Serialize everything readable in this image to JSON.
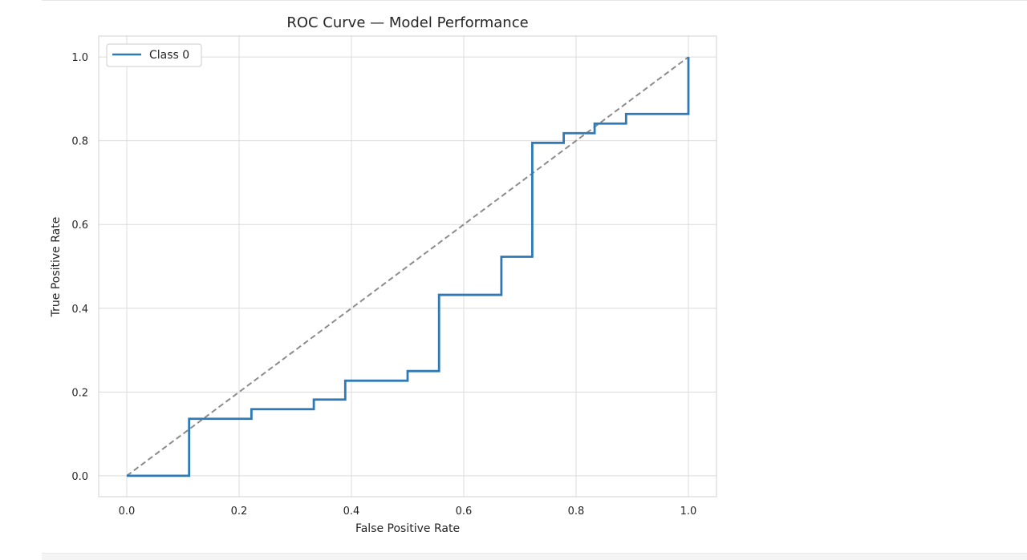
{
  "chart_data": {
    "type": "line",
    "title": "ROC Curve — Model Performance",
    "xlabel": "False Positive Rate",
    "ylabel": "True Positive Rate",
    "xlim": [
      -0.05,
      1.05
    ],
    "ylim": [
      -0.05,
      1.05
    ],
    "xticks": [
      0.0,
      0.2,
      0.4,
      0.6,
      0.8,
      1.0
    ],
    "yticks": [
      0.0,
      0.2,
      0.4,
      0.6,
      0.8,
      1.0
    ],
    "xtick_labels": [
      "0.0",
      "0.2",
      "0.4",
      "0.6",
      "0.8",
      "1.0"
    ],
    "ytick_labels": [
      "0.0",
      "0.2",
      "0.4",
      "0.6",
      "0.8",
      "1.0"
    ],
    "grid": true,
    "legend_position": "upper-left",
    "series": [
      {
        "name": "Class 0",
        "style": "step",
        "color": "#2e7ab6",
        "x": [
          0.0,
          0.111,
          0.111,
          0.222,
          0.222,
          0.333,
          0.333,
          0.389,
          0.389,
          0.5,
          0.5,
          0.556,
          0.556,
          0.667,
          0.667,
          0.722,
          0.722,
          0.778,
          0.778,
          0.833,
          0.833,
          0.889,
          0.889,
          1.0,
          1.0
        ],
        "y": [
          0.0,
          0.0,
          0.136,
          0.136,
          0.159,
          0.159,
          0.182,
          0.182,
          0.227,
          0.227,
          0.25,
          0.25,
          0.432,
          0.432,
          0.523,
          0.523,
          0.795,
          0.795,
          0.818,
          0.818,
          0.841,
          0.841,
          0.864,
          0.864,
          1.0
        ]
      },
      {
        "style": "dashed",
        "color": "#8c8c8c",
        "x": [
          0.0,
          1.0
        ],
        "y": [
          0.0,
          1.0
        ]
      }
    ]
  }
}
